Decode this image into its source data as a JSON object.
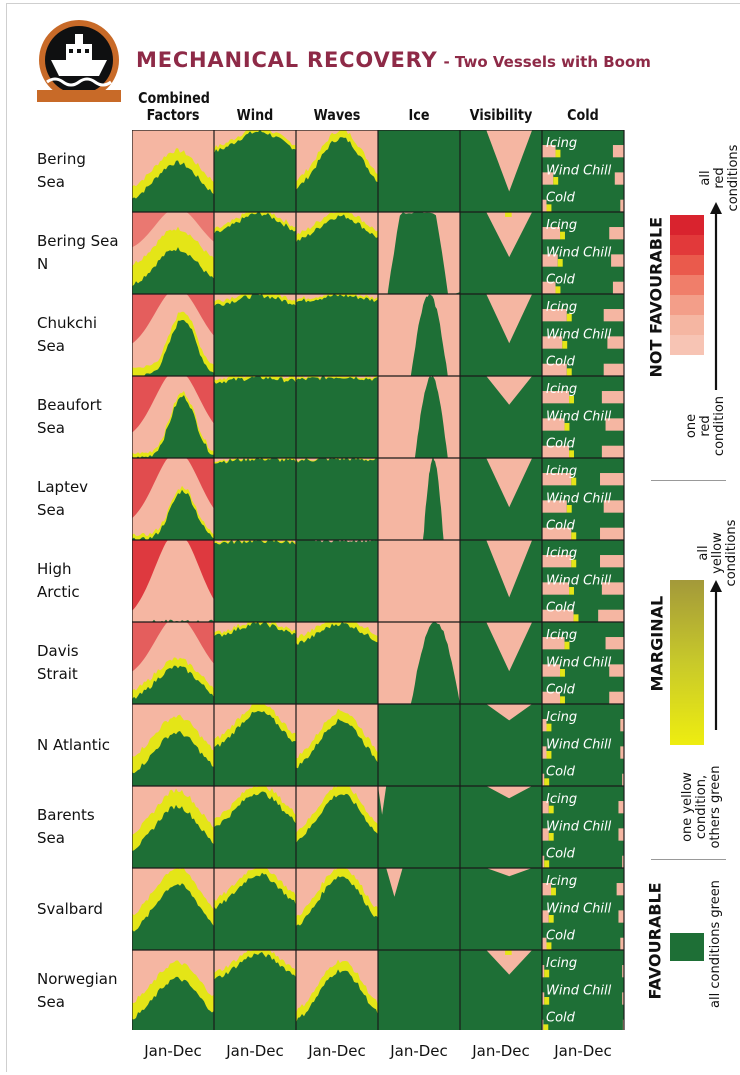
{
  "title": {
    "main": "MECHANICAL RECOVERY",
    "sub": "- Two Vessels with Boom"
  },
  "colors": {
    "favourable": "#1e6f36",
    "marginal_low": "#e4e517",
    "marginal_high": "#a9a336",
    "not_favourable_low": "#f5b6a2",
    "not_favourable_high": "#d9232e",
    "title": "#8e2a47"
  },
  "logo": {
    "icon": "ship-icon"
  },
  "chart_data": {
    "type": "heatmap",
    "columns": [
      "Combined Factors",
      "Wind",
      "Waves",
      "Ice",
      "Visibility",
      "Cold"
    ],
    "column_display": [
      [
        "Combined",
        "Factors"
      ],
      [
        "Wind"
      ],
      [
        "Waves"
      ],
      [
        "Ice"
      ],
      [
        "Visibility"
      ],
      [
        "Cold"
      ]
    ],
    "rows": [
      "Bering Sea",
      "Bering Sea N",
      "Chukchi Sea",
      "Beaufort Sea",
      "Laptev Sea",
      "High Arctic",
      "Davis Strait",
      "N Atlantic",
      "Barents Sea",
      "Svalbard",
      "Norwegian Sea"
    ],
    "row_display": [
      [
        "Bering",
        "Sea"
      ],
      [
        "Bering Sea",
        "N"
      ],
      [
        "Chukchi",
        "Sea"
      ],
      [
        "Beaufort",
        "Sea"
      ],
      [
        "Laptev",
        "Sea"
      ],
      [
        "High",
        "Arctic"
      ],
      [
        "Davis",
        "Strait"
      ],
      [
        "N Atlantic"
      ],
      [
        "Barents",
        "Sea"
      ],
      [
        "Svalbard"
      ],
      [
        "Norwegian",
        "Sea"
      ]
    ],
    "x_label": "Jan-Dec",
    "cold_sublabels": [
      "Icing",
      "Wind Chill",
      "Cold"
    ],
    "cell_note": "per cell: fraction of days favourable (green) vs marginal (yellow) vs not favourable (red) across the year, Jan to Dec",
    "cells": {
      "Bering Sea": {
        "Combined Factors": {
          "green_peak": 0.6,
          "green_base": 0.1,
          "yellow": 0.15,
          "redness": 0.0
        },
        "Wind": {
          "green_peak": 0.98,
          "green_base": 0.7,
          "yellow": 0.05,
          "redness": 0
        },
        "Waves": {
          "green_peak": 0.9,
          "green_base": 0.2,
          "yellow": 0.1,
          "redness": 0
        },
        "Ice": {
          "mode": "green"
        },
        "Visibility": {
          "green_peak": 0.98,
          "green_base": 0.25,
          "yellow": 0,
          "redness": 0
        },
        "Cold": {
          "icing": 0.3,
          "windchill": 0.25,
          "cold": 0.1
        }
      },
      "Bering Sea N": {
        "Combined Factors": {
          "green_peak": 0.55,
          "green_base": 0.05,
          "yellow": 0.25,
          "redness": 0.5
        },
        "Wind": {
          "green_peak": 0.98,
          "green_base": 0.7,
          "yellow": 0.05,
          "redness": 0
        },
        "Waves": {
          "green_peak": 0.95,
          "green_base": 0.6,
          "yellow": 0.08,
          "redness": 0
        },
        "Ice": {
          "mode": "ice",
          "start": 0.12,
          "end": 1.0,
          "shape": "wide"
        },
        "Visibility": {
          "green_peak": 0.98,
          "green_base": 0.45,
          "yellow": 0.05,
          "redness": 0
        },
        "Cold": {
          "icing": 0.4,
          "windchill": 0.35,
          "cold": 0.3
        }
      },
      "Chukchi Sea": {
        "Combined Factors": {
          "green_peak": 0.7,
          "green_base": 0.0,
          "yellow": 0.1,
          "redness": 0.7,
          "narrow": true
        },
        "Wind": {
          "green_peak": 0.98,
          "green_base": 0.85,
          "yellow": 0.05,
          "redness": 0
        },
        "Waves": {
          "green_peak": 0.98,
          "green_base": 0.9,
          "yellow": 0.03,
          "redness": 0
        },
        "Ice": {
          "mode": "ice",
          "start": 0.4,
          "end": 0.85,
          "shape": "peak"
        },
        "Visibility": {
          "green_peak": 0.98,
          "green_base": 0.4,
          "yellow": 0,
          "redness": 0
        },
        "Cold": {
          "icing": 0.55,
          "windchill": 0.45,
          "cold": 0.55
        }
      },
      "Beaufort Sea": {
        "Combined Factors": {
          "green_peak": 0.75,
          "green_base": 0.0,
          "yellow": 0.05,
          "redness": 0.8,
          "narrow": true
        },
        "Wind": {
          "green_peak": 0.98,
          "green_base": 0.92,
          "yellow": 0.04,
          "redness": 0
        },
        "Waves": {
          "green_peak": 0.99,
          "green_base": 0.95,
          "yellow": 0.02,
          "redness": 0
        },
        "Ice": {
          "mode": "ice",
          "start": 0.45,
          "end": 0.85,
          "shape": "peak"
        },
        "Visibility": {
          "green_peak": 0.98,
          "green_base": 0.65,
          "yellow": 0,
          "redness": 0
        },
        "Cold": {
          "icing": 0.6,
          "windchill": 0.5,
          "cold": 0.6
        }
      },
      "Laptev Sea": {
        "Combined Factors": {
          "green_peak": 0.6,
          "green_base": 0.0,
          "yellow": 0.05,
          "redness": 0.85,
          "narrow": true
        },
        "Wind": {
          "green_peak": 0.99,
          "green_base": 0.95,
          "yellow": 0.02,
          "redness": 0
        },
        "Waves": {
          "green_peak": 0.99,
          "green_base": 0.97,
          "yellow": 0.01,
          "redness": 0
        },
        "Ice": {
          "mode": "ice",
          "start": 0.55,
          "end": 0.8,
          "shape": "peak"
        },
        "Visibility": {
          "green_peak": 0.98,
          "green_base": 0.4,
          "yellow": 0,
          "redness": 0
        },
        "Cold": {
          "icing": 0.65,
          "windchill": 0.55,
          "cold": 0.65
        }
      },
      "High Arctic": {
        "Combined Factors": {
          "green_peak": 0.0,
          "green_base": 0.0,
          "yellow": 0.0,
          "redness": 1.0
        },
        "Wind": {
          "green_peak": 0.99,
          "green_base": 0.96,
          "yellow": 0.02,
          "redness": 0
        },
        "Waves": {
          "green_peak": 1.0,
          "green_base": 1.0,
          "yellow": 0,
          "redness": 0
        },
        "Ice": {
          "mode": "allred"
        },
        "Visibility": {
          "green_peak": 0.98,
          "green_base": 0.3,
          "yellow": 0,
          "redness": 0
        },
        "Cold": {
          "icing": 0.65,
          "windchill": 0.6,
          "cold": 0.7
        }
      },
      "Davis Strait": {
        "Combined Factors": {
          "green_peak": 0.45,
          "green_base": 0.0,
          "yellow": 0.1,
          "redness": 0.7
        },
        "Wind": {
          "green_peak": 0.98,
          "green_base": 0.8,
          "yellow": 0.04,
          "redness": 0
        },
        "Waves": {
          "green_peak": 0.98,
          "green_base": 0.7,
          "yellow": 0.08,
          "redness": 0
        },
        "Ice": {
          "mode": "ice",
          "start": 0.4,
          "end": 1.0,
          "shape": "peak"
        },
        "Visibility": {
          "green_peak": 0.98,
          "green_base": 0.4,
          "yellow": 0,
          "redness": 0
        },
        "Cold": {
          "icing": 0.5,
          "windchill": 0.4,
          "cold": 0.4
        }
      },
      "N Atlantic": {
        "Combined Factors": {
          "green_peak": 0.65,
          "green_base": 0.1,
          "yellow": 0.2,
          "redness": 0.0
        },
        "Wind": {
          "green_peak": 0.9,
          "green_base": 0.4,
          "yellow": 0.1,
          "redness": 0
        },
        "Waves": {
          "green_peak": 0.8,
          "green_base": 0.15,
          "yellow": 0.12,
          "redness": 0
        },
        "Ice": {
          "mode": "green"
        },
        "Visibility": {
          "green_peak": 0.98,
          "green_base": 0.8,
          "yellow": 0,
          "redness": 0
        },
        "Cold": {
          "icing": 0.1,
          "windchill": 0.1,
          "cold": 0.05
        }
      },
      "Barents Sea": {
        "Combined Factors": {
          "green_peak": 0.75,
          "green_base": 0.15,
          "yellow": 0.2,
          "redness": 0.0
        },
        "Wind": {
          "green_peak": 0.92,
          "green_base": 0.45,
          "yellow": 0.1,
          "redness": 0
        },
        "Waves": {
          "green_peak": 0.9,
          "green_base": 0.25,
          "yellow": 0.12,
          "redness": 0
        },
        "Ice": {
          "mode": "ice",
          "start": 0.0,
          "end": 0.1,
          "shape": "notch"
        },
        "Visibility": {
          "green_peak": 0.98,
          "green_base": 0.85,
          "yellow": 0,
          "redness": 0
        },
        "Cold": {
          "icing": 0.15,
          "windchill": 0.15,
          "cold": 0.05
        }
      },
      "Svalbard": {
        "Combined Factors": {
          "green_peak": 0.8,
          "green_base": 0.15,
          "yellow": 0.2,
          "redness": 0.0
        },
        "Wind": {
          "green_peak": 0.92,
          "green_base": 0.45,
          "yellow": 0.1,
          "redness": 0
        },
        "Waves": {
          "green_peak": 0.9,
          "green_base": 0.2,
          "yellow": 0.12,
          "redness": 0
        },
        "Ice": {
          "mode": "ice",
          "start": 0.1,
          "end": 0.3,
          "shape": "notch"
        },
        "Visibility": {
          "green_peak": 0.98,
          "green_base": 0.9,
          "yellow": 0,
          "redness": 0
        },
        "Cold": {
          "icing": 0.2,
          "windchill": 0.15,
          "cold": 0.1
        }
      },
      "Norwegian Sea": {
        "Combined Factors": {
          "green_peak": 0.65,
          "green_base": 0.1,
          "yellow": 0.2,
          "redness": 0.0
        },
        "Wind": {
          "green_peak": 0.95,
          "green_base": 0.6,
          "yellow": 0.08,
          "redness": 0
        },
        "Waves": {
          "green_peak": 0.75,
          "green_base": 0.05,
          "yellow": 0.12,
          "redness": 0
        },
        "Ice": {
          "mode": "green"
        },
        "Visibility": {
          "green_peak": 0.98,
          "green_base": 0.7,
          "yellow": 0.05,
          "redness": 0
        },
        "Cold": {
          "icing": 0.05,
          "windchill": 0.05,
          "cold": 0.03
        }
      }
    }
  },
  "legend": {
    "not_favourable": "NOT FAVOURABLE",
    "nf_top": [
      "all",
      "red",
      "conditions"
    ],
    "nf_bottom": [
      "one",
      "red",
      "condition"
    ],
    "marginal": "MARGINAL",
    "mg_top": [
      "all",
      "yellow",
      "conditions"
    ],
    "mg_bottom": [
      "one yellow",
      "condition,",
      "others green"
    ],
    "favourable": "FAVOURABLE",
    "fav_caption": "all conditions green"
  }
}
